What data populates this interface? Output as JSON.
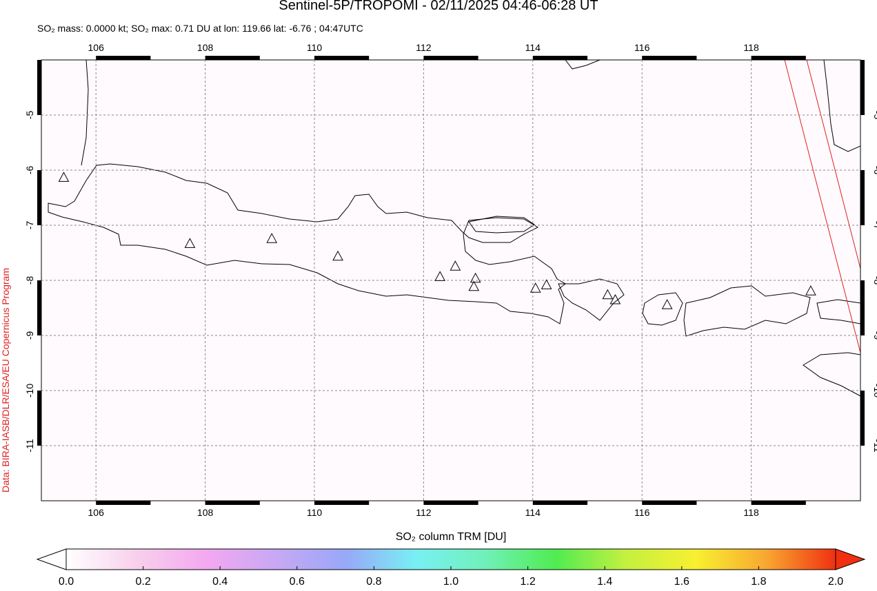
{
  "chart_data": {
    "type": "scatter",
    "title": "Sentinel-5P/TROPOMI - 02/11/2025 04:46-06:28 UT",
    "subtitle": "SO₂ mass: 0.0000 kt; SO₂ max: 0.71 DU at lon: 119.66 lat: -6.76 ; 04:47UTC",
    "credit": "Data: BIRA-IASB/DLR/ESA/EU Copernicus Program",
    "x": [
      105.41,
      107.72,
      109.22,
      110.43,
      112.3,
      112.58,
      112.95,
      112.92,
      114.05,
      114.25,
      115.37,
      115.51,
      116.46,
      119.09
    ],
    "values": [
      -6.13,
      -7.33,
      -7.24,
      -7.56,
      -7.93,
      -7.74,
      -7.96,
      -8.11,
      -8.14,
      -8.08,
      -8.26,
      -8.35,
      -8.44,
      -8.19
    ],
    "marker_color": "#000000",
    "xlim": [
      105,
      120
    ],
    "ylim": [
      -12,
      -4
    ],
    "xticks": [
      106,
      108,
      110,
      112,
      114,
      116,
      118
    ],
    "yticks": [
      -5,
      -6,
      -7,
      -8,
      -9,
      -10,
      -11
    ],
    "grid": true,
    "colorbar": {
      "label": "SO₂ column TRM [DU]",
      "lim": [
        0,
        2
      ],
      "colors": [
        "#ffffff",
        "#f8d0ec",
        "#f4a8f0",
        "#c8a8f4",
        "#98a8f8",
        "#78f0f4",
        "#70f0b8",
        "#50ec50",
        "#c4f040",
        "#f8f030",
        "#f8a830",
        "#f03010"
      ],
      "ticks": [
        {
          "value": 0,
          "label": "0.0"
        },
        {
          "value": 0.2,
          "label": "0.2"
        },
        {
          "value": 0.4,
          "label": "0.4"
        },
        {
          "value": 0.6,
          "label": "0.6"
        },
        {
          "value": 0.8,
          "label": "0.8"
        },
        {
          "value": 1,
          "label": "1.0"
        },
        {
          "value": 1.2,
          "label": "1.2"
        },
        {
          "value": 1.4,
          "label": "1.4"
        },
        {
          "value": 1.6,
          "label": "1.6"
        },
        {
          "value": 1.8,
          "label": "1.8"
        },
        {
          "value": 2,
          "label": "2.0"
        }
      ]
    }
  }
}
